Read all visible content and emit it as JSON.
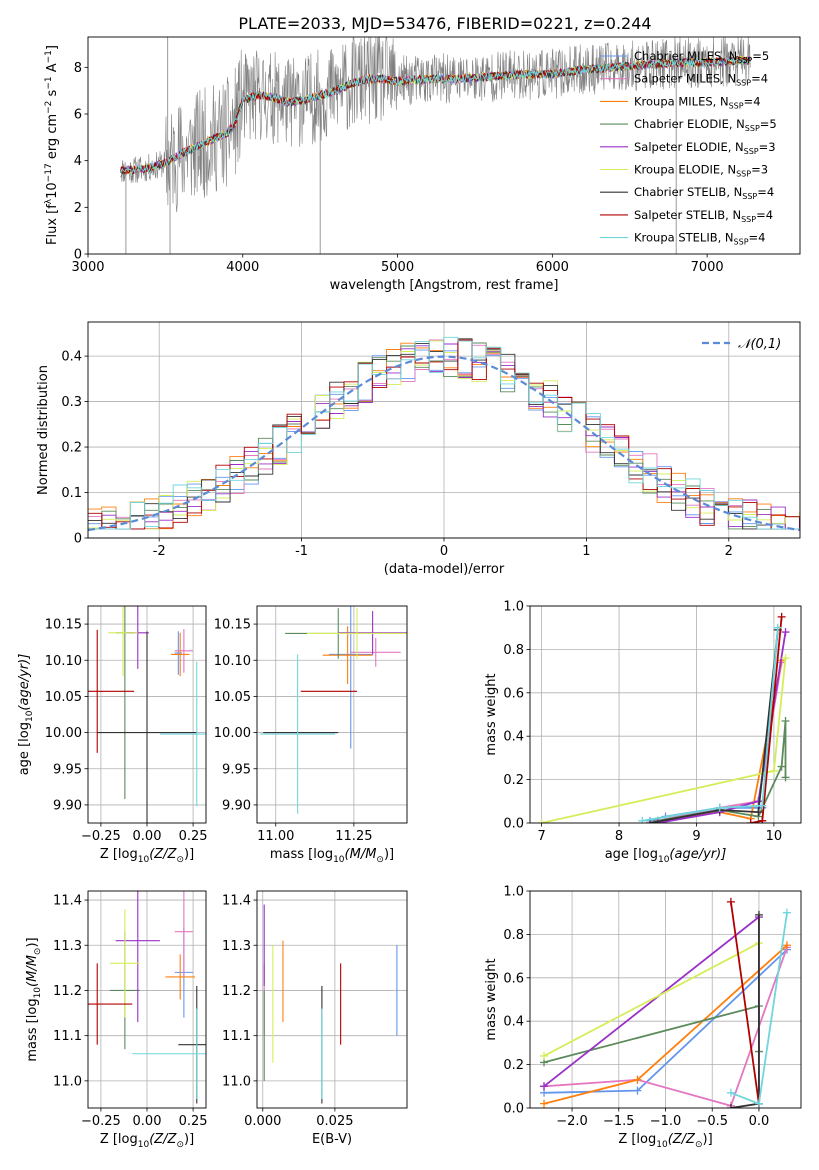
{
  "title": "PLATE=2033, MJD=53476, FIBERID=0221, z=0.244",
  "colors": {
    "Chabrier MILES": "#6495ed",
    "Salpeter MILES": "#e377c2",
    "Kroupa MILES": "#ff7f0e",
    "Chabrier ELODIE": "#5b8a5b",
    "Salpeter ELODIE": "#9b30c8",
    "Kroupa ELODIE": "#d4ee5a",
    "Chabrier STELIB": "#333333",
    "Salpeter STELIB": "#b00000",
    "Kroupa STELIB": "#6fd6dc",
    "data": "#808080",
    "normal": "#5b8bd6"
  },
  "chart_data": [
    {
      "type": "line",
      "id": "spectrum",
      "title": "PLATE=2033, MJD=53476, FIBERID=0221, z=0.244",
      "xlabel": "wavelength [Angstrom, rest frame]",
      "ylabel_parts": [
        "Flux [f",
        "λ",
        "10",
        "−17",
        " erg cm",
        "−2",
        " s",
        "−1",
        " A",
        "−1",
        "]"
      ],
      "xlim": [
        3000,
        7600
      ],
      "ylim": [
        0,
        9.3
      ],
      "xticks": [
        3000,
        4000,
        5000,
        6000,
        7000
      ],
      "yticks": [
        0,
        2,
        4,
        6,
        8
      ],
      "legend_position": "top-right",
      "legend": [
        {
          "name": "Chabrier MILES",
          "nssp": "5"
        },
        {
          "name": "Salpeter MILES",
          "nssp": "4"
        },
        {
          "name": "Kroupa MILES",
          "nssp": "4"
        },
        {
          "name": "Chabrier ELODIE",
          "nssp": "5"
        },
        {
          "name": "Salpeter ELODIE",
          "nssp": "3"
        },
        {
          "name": "Kroupa ELODIE",
          "nssp": "3"
        },
        {
          "name": "Chabrier STELIB",
          "nssp": "4"
        },
        {
          "name": "Salpeter STELIB",
          "nssp": "4"
        },
        {
          "name": "Kroupa STELIB",
          "nssp": "4"
        }
      ],
      "continuum": {
        "x": [
          3210,
          3300,
          3400,
          3500,
          3600,
          3700,
          3800,
          3900,
          3950,
          4000,
          4100,
          4200,
          4300,
          4400,
          4500,
          4600,
          4700,
          4800,
          4900,
          5000,
          5200,
          5400,
          5600,
          5800,
          6000,
          6200,
          6400,
          6600,
          6800,
          7000,
          7200
        ],
        "y": [
          3.6,
          3.6,
          3.7,
          3.9,
          4.3,
          4.6,
          4.9,
          5.2,
          5.6,
          6.6,
          6.8,
          6.7,
          6.5,
          6.6,
          6.8,
          7.0,
          7.3,
          7.5,
          7.5,
          7.4,
          7.5,
          7.5,
          7.6,
          7.7,
          7.7,
          7.9,
          8.0,
          8.1,
          8.2,
          8.2,
          8.3
        ]
      }
    },
    {
      "type": "line",
      "id": "residuals",
      "xlabel": "(data-model)/error",
      "ylabel": "Normed distribution",
      "xlim": [
        -2.5,
        2.5
      ],
      "ylim": [
        0,
        0.475
      ],
      "xticks": [
        -2,
        -1,
        0,
        1,
        2
      ],
      "yticks": [
        0.0,
        0.1,
        0.2,
        0.3,
        0.4
      ],
      "grid": true,
      "legend_position": "top-right",
      "legend": [
        {
          "name": "𝒩(0,1)"
        }
      ],
      "bin_width": 0.1,
      "histogram_model": "gaussian"
    },
    {
      "type": "scatter",
      "id": "age-vs-Z",
      "xlabel_parts": [
        "Z [log",
        "10",
        "(Z/Z",
        "⊙",
        ")]"
      ],
      "ylabel_parts": [
        "age  [log",
        "10",
        "(age/yr)]"
      ],
      "xlim": [
        -0.32,
        0.32
      ],
      "ylim": [
        9.875,
        10.175
      ],
      "xticks": [
        -0.25,
        0.0,
        0.25
      ],
      "xticklabels": [
        "−0.25",
        "0.00",
        "0.25"
      ],
      "yticks": [
        9.9,
        9.95,
        10.0,
        10.05,
        10.1,
        10.15
      ],
      "yticklabels": [
        "9.90",
        "9.95",
        "10.00",
        "10.05",
        "10.10",
        "10.15"
      ],
      "grid": true,
      "points": [
        {
          "model": "Chabrier MILES",
          "x": 0.17,
          "xerr": 0.02,
          "y": 10.11,
          "yerr": 0.03
        },
        {
          "model": "Salpeter MILES",
          "x": 0.2,
          "xerr": 0.05,
          "y": 10.113,
          "yerr": 0.03
        },
        {
          "model": "Kroupa MILES",
          "x": 0.18,
          "xerr": 0.05,
          "y": 10.108,
          "yerr": 0.03
        },
        {
          "model": "Chabrier ELODIE",
          "x": -0.12,
          "xerr": 0.05,
          "y": 10.138,
          "yerr": 0.23
        },
        {
          "model": "Salpeter ELODIE",
          "x": -0.05,
          "xerr": 0.06,
          "y": 10.138,
          "yerr": 0.05
        },
        {
          "model": "Kroupa ELODIE",
          "x": -0.13,
          "xerr": 0.08,
          "y": 10.138,
          "yerr": 0.06
        },
        {
          "model": "Chabrier STELIB",
          "x": 0.0,
          "xerr": 0.27,
          "y": 10.0,
          "yerr": 0.14
        },
        {
          "model": "Salpeter STELIB",
          "x": -0.27,
          "xerr": 0.2,
          "y": 10.057,
          "yerr": 0.085
        },
        {
          "model": "Kroupa STELIB",
          "x": 0.27,
          "xerr": 0.2,
          "y": 9.998,
          "yerr": 0.1
        }
      ]
    },
    {
      "type": "scatter",
      "id": "age-vs-mass",
      "xlabel_parts": [
        "mass [log",
        "10",
        "(M/M",
        "⊙",
        ")]"
      ],
      "xlim": [
        10.94,
        11.42
      ],
      "ylim": [
        9.875,
        10.175
      ],
      "xticks": [
        11.0,
        11.25
      ],
      "xticklabels": [
        "11.00",
        "11.25"
      ],
      "yticks": [
        9.9,
        9.95,
        10.0,
        10.05,
        10.1,
        10.15
      ],
      "yticklabels": [
        "9.90",
        "9.95",
        "10.00",
        "10.05",
        "10.10",
        "10.15"
      ],
      "grid": true,
      "points": [
        {
          "model": "Chabrier MILES",
          "x": 11.24,
          "xerr": 0.07,
          "y": 10.108,
          "yerr": 0.13
        },
        {
          "model": "Salpeter MILES",
          "x": 11.32,
          "xerr": 0.08,
          "y": 10.111,
          "yerr": 0.02
        },
        {
          "model": "Kroupa MILES",
          "x": 11.23,
          "xerr": 0.08,
          "y": 10.107,
          "yerr": 0.04
        },
        {
          "model": "Chabrier ELODIE",
          "x": 11.2,
          "xerr": 0.17,
          "y": 10.137,
          "yerr": 0.035
        },
        {
          "model": "Salpeter ELODIE",
          "x": 11.31,
          "xerr": 0.11,
          "y": 10.138,
          "yerr": 0.03
        },
        {
          "model": "Kroupa ELODIE",
          "x": 11.26,
          "xerr": 0.16,
          "y": 10.137,
          "yerr": 0.035
        },
        {
          "model": "Chabrier STELIB",
          "x": 11.08,
          "xerr": 0.12,
          "y": 10.0,
          "yerr": 0.0
        },
        {
          "model": "Salpeter STELIB",
          "x": 11.17,
          "xerr": 0.09,
          "y": 10.057,
          "yerr": 0.0
        },
        {
          "model": "Kroupa STELIB",
          "x": 11.07,
          "xerr": 0.12,
          "y": 9.998,
          "yerr": 0.11
        }
      ]
    },
    {
      "type": "line",
      "id": "mass-weight-vs-age",
      "xlabel_parts": [
        "age  [log",
        "10",
        "(age/yr)]"
      ],
      "ylabel": "mass weight",
      "xlim": [
        6.85,
        10.35
      ],
      "ylim": [
        0,
        1.0
      ],
      "xticks": [
        7,
        8,
        9,
        10
      ],
      "yticks": [
        0.0,
        0.2,
        0.4,
        0.6,
        0.8,
        1.0
      ],
      "yticklabels": [
        "0.0",
        "0.2",
        "0.4",
        "0.6",
        "0.8",
        "1.0"
      ],
      "grid": true,
      "series": [
        {
          "model": "Chabrier MILES",
          "x": [
            8.4,
            8.6,
            9.3,
            9.85,
            10.05
          ],
          "y": [
            0.01,
            0.03,
            0.07,
            0.07,
            0.89
          ]
        },
        {
          "model": "Salpeter MILES",
          "x": [
            8.5,
            9.3,
            9.8,
            10.1
          ],
          "y": [
            0.01,
            0.07,
            0.1,
            0.74
          ]
        },
        {
          "model": "Kroupa MILES",
          "x": [
            8.4,
            9.3,
            9.7,
            10.1
          ],
          "y": [
            0.0,
            0.05,
            0.02,
            0.75
          ]
        },
        {
          "model": "Chabrier ELODIE",
          "x": [
            8.5,
            9.3,
            9.8,
            10.1,
            10.15,
            10.15
          ],
          "y": [
            0.01,
            0.06,
            0.03,
            0.26,
            0.47,
            0.21
          ]
        },
        {
          "model": "Salpeter ELODIE",
          "x": [
            8.5,
            9.3,
            9.8,
            10.15
          ],
          "y": [
            0.0,
            0.05,
            0.1,
            0.88
          ]
        },
        {
          "model": "Kroupa ELODIE",
          "x": [
            7.0,
            10.0,
            10.15
          ],
          "y": [
            0.0,
            0.24,
            0.76
          ]
        },
        {
          "model": "Chabrier STELIB",
          "x": [
            8.4,
            9.3,
            9.8,
            10.05
          ],
          "y": [
            0.0,
            0.06,
            0.05,
            0.89
          ]
        },
        {
          "model": "Salpeter STELIB",
          "x": [
            9.7,
            9.85,
            10.1
          ],
          "y": [
            0.0,
            0.01,
            0.95
          ]
        },
        {
          "model": "Kroupa STELIB",
          "x": [
            8.3,
            9.3,
            9.85,
            10.05
          ],
          "y": [
            0.01,
            0.07,
            0.08,
            0.9
          ]
        }
      ]
    },
    {
      "type": "scatter",
      "id": "mass-vs-Z",
      "xlabel_parts": [
        "Z [log",
        "10",
        "(Z/Z",
        "⊙",
        ")]"
      ],
      "ylabel_parts": [
        "mass [log",
        "10",
        "(M/M",
        "⊙",
        ")]"
      ],
      "xlim": [
        -0.32,
        0.32
      ],
      "ylim": [
        10.94,
        11.42
      ],
      "xticks": [
        -0.25,
        0.0,
        0.25
      ],
      "xticklabels": [
        "−0.25",
        "0.00",
        "0.25"
      ],
      "yticks": [
        11.0,
        11.1,
        11.2,
        11.3,
        11.4
      ],
      "yticklabels": [
        "11.0",
        "11.1",
        "11.2",
        "11.3",
        "11.4"
      ],
      "grid": true,
      "points": [
        {
          "model": "Chabrier MILES",
          "x": 0.2,
          "xerr": 0.05,
          "y": 11.24,
          "yerr": 0.1
        },
        {
          "model": "Salpeter MILES",
          "x": 0.2,
          "xerr": 0.05,
          "y": 11.33,
          "yerr": 0.1
        },
        {
          "model": "Kroupa MILES",
          "x": 0.18,
          "xerr": 0.08,
          "y": 11.23,
          "yerr": 0.05
        },
        {
          "model": "Chabrier ELODIE",
          "x": -0.12,
          "xerr": 0.08,
          "y": 11.2,
          "yerr": 0.13
        },
        {
          "model": "Salpeter ELODIE",
          "x": -0.05,
          "xerr": 0.12,
          "y": 11.31,
          "yerr": 0.18
        },
        {
          "model": "Kroupa ELODIE",
          "x": -0.12,
          "xerr": 0.08,
          "y": 11.26,
          "yerr": 0.12
        },
        {
          "model": "Chabrier STELIB",
          "x": 0.27,
          "xerr": 0.1,
          "y": 11.08,
          "yerr": 0.13
        },
        {
          "model": "Salpeter STELIB",
          "x": -0.27,
          "xerr": 0.19,
          "y": 11.17,
          "yerr": 0.09
        },
        {
          "model": "Kroupa STELIB",
          "x": 0.27,
          "xerr": 0.35,
          "y": 11.06,
          "yerr": 0.1
        }
      ]
    },
    {
      "type": "scatter",
      "id": "mass-vs-ebv",
      "xlabel": "E(B-V)",
      "xlim": [
        -0.002,
        0.05
      ],
      "ylim": [
        10.94,
        11.42
      ],
      "xticks": [
        0.0,
        0.025
      ],
      "xticklabels": [
        "0.000",
        "0.025"
      ],
      "yticks": [
        11.0,
        11.1,
        11.2,
        11.3,
        11.4
      ],
      "yticklabels": [
        "11.0",
        "11.1",
        "11.2",
        "11.3",
        "11.4"
      ],
      "grid": true,
      "points": [
        {
          "model": "Chabrier MILES",
          "x": 0.0465,
          "y": 11.2,
          "yerr": 0.1
        },
        {
          "model": "Salpeter MILES",
          "x": 0.0005,
          "y": 11.18,
          "yerr": 0.08
        },
        {
          "model": "Kroupa MILES",
          "x": 0.007,
          "y": 11.22,
          "yerr": 0.09
        },
        {
          "model": "Chabrier ELODIE",
          "x": 0.0005,
          "y": 11.1,
          "yerr": 0.1
        },
        {
          "model": "Salpeter ELODIE",
          "x": 0.0005,
          "y": 11.3,
          "yerr": 0.09
        },
        {
          "model": "Kroupa ELODIE",
          "x": 0.0035,
          "y": 11.17,
          "yerr": 0.13
        },
        {
          "model": "Chabrier STELIB",
          "x": 0.0205,
          "y": 11.08,
          "yerr": 0.13
        },
        {
          "model": "Salpeter STELIB",
          "x": 0.027,
          "y": 11.17,
          "yerr": 0.09
        },
        {
          "model": "Kroupa STELIB",
          "x": 0.0205,
          "y": 11.06,
          "yerr": 0.1
        }
      ]
    },
    {
      "type": "line",
      "id": "mass-weight-vs-Z",
      "xlabel_parts": [
        "Z [log",
        "10",
        "(Z/Z",
        "⊙",
        ")]"
      ],
      "ylabel": "mass weight",
      "xlim": [
        -2.45,
        0.45
      ],
      "ylim": [
        0,
        1.0
      ],
      "xticks": [
        -2.0,
        -1.5,
        -1.0,
        -0.5,
        0.0
      ],
      "xticklabels": [
        "−2.0",
        "−1.5",
        "−1.0",
        "−0.5",
        "0.0"
      ],
      "yticks": [
        0.0,
        0.2,
        0.4,
        0.6,
        0.8,
        1.0
      ],
      "yticklabels": [
        "0.0",
        "0.2",
        "0.4",
        "0.6",
        "0.8",
        "1.0"
      ],
      "grid": true,
      "series": [
        {
          "model": "Chabrier MILES",
          "x": [
            -2.3,
            -1.3,
            0.3
          ],
          "y": [
            0.07,
            0.08,
            0.73
          ]
        },
        {
          "model": "Salpeter MILES",
          "x": [
            -2.3,
            -1.3,
            -0.3,
            0.3
          ],
          "y": [
            0.1,
            0.13,
            0.01,
            0.74
          ]
        },
        {
          "model": "Kroupa MILES",
          "x": [
            -2.3,
            -1.3,
            0.3
          ],
          "y": [
            0.02,
            0.13,
            0.75
          ]
        },
        {
          "model": "Chabrier ELODIE",
          "x": [
            -2.3,
            0.0,
            0.0
          ],
          "y": [
            0.21,
            0.47,
            0.26
          ]
        },
        {
          "model": "Salpeter ELODIE",
          "x": [
            -2.3,
            0.0,
            0.0
          ],
          "y": [
            0.1,
            0.88,
            0.02
          ]
        },
        {
          "model": "Kroupa ELODIE",
          "x": [
            -2.3,
            0.0
          ],
          "y": [
            0.24,
            0.76
          ]
        },
        {
          "model": "Chabrier STELIB",
          "x": [
            -0.3,
            0.0,
            0.0
          ],
          "y": [
            0.0,
            0.02,
            0.89
          ]
        },
        {
          "model": "Salpeter STELIB",
          "x": [
            -0.3,
            0.0
          ],
          "y": [
            0.95,
            0.02
          ]
        },
        {
          "model": "Kroupa STELIB",
          "x": [
            -0.3,
            0.0,
            0.3
          ],
          "y": [
            0.07,
            0.02,
            0.9
          ]
        }
      ]
    }
  ]
}
